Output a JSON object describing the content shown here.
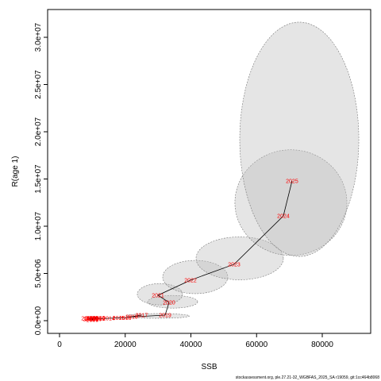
{
  "chart_data": {
    "type": "path",
    "x_label": "SSB",
    "y_label": "R(age 1)",
    "footer": "stockassessment.org, ple.27.21-32_WGBFAS_2025_SA r19059, git:1cc464b8068",
    "point_labels": [
      "2005",
      "2006",
      "2007",
      "2008",
      "2009",
      "2010",
      "2011",
      "2012",
      "2013",
      "2014",
      "2015",
      "2016",
      "2017",
      "2018",
      "2019",
      "2020",
      "2021",
      "2022",
      "2023",
      "2024",
      "2025"
    ],
    "x": [
      10000,
      12000,
      8500,
      9500,
      10000,
      11000,
      9000,
      10000,
      12000,
      15000,
      18000,
      20000,
      25000,
      22000,
      32150,
      33350,
      29970,
      39880,
      53170,
      68150,
      70800
    ],
    "values": [
      300000,
      300000,
      250000,
      200000,
      100000,
      150000,
      150000,
      200000,
      200000,
      250000,
      300000,
      300000,
      600000,
      400000,
      590000,
      1930000,
      2690000,
      4290000,
      5970000,
      11090000,
      14790000
    ],
    "ellipses": [
      {
        "cx": 29900,
        "cy": 500000,
        "rx": 9670,
        "ry": 250000
      },
      {
        "cx": 34440,
        "cy": 2000000,
        "rx": 7610,
        "ry": 670000
      },
      {
        "cx": 30570,
        "cy": 2800000,
        "rx": 6890,
        "ry": 1130000
      },
      {
        "cx": 41330,
        "cy": 4620000,
        "rx": 9910,
        "ry": 1760000
      },
      {
        "cx": 54860,
        "cy": 6600000,
        "rx": 13290,
        "ry": 2270000
      },
      {
        "cx": 70450,
        "cy": 12500000,
        "rx": 17050,
        "ry": 5590000
      },
      {
        "cx": 73000,
        "cy": 19200000,
        "rx": 18130,
        "ry": 12400000
      }
    ],
    "xlim": [
      -3625,
      94743
    ],
    "ylim": [
      -1344000,
      32940000
    ],
    "xticks": [
      0,
      20000,
      40000,
      60000,
      80000
    ],
    "yticks": [
      {
        "value": 0,
        "label": "0.0e+00"
      },
      {
        "value": 5000000,
        "label": "5.0e+06"
      },
      {
        "value": 10000000,
        "label": "1.0e+07"
      },
      {
        "value": 15000000,
        "label": "1.5e+07"
      },
      {
        "value": 20000000,
        "label": "2.0e+07"
      },
      {
        "value": 25000000,
        "label": "2.5e+07"
      },
      {
        "value": 30000000,
        "label": "3.0e+07"
      }
    ],
    "point_color": "#ff0000",
    "line_color": "#000000",
    "ellipse_color": "#bdbdbd"
  }
}
